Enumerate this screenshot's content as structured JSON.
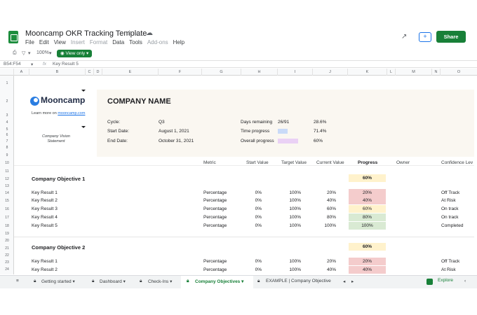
{
  "doc": {
    "title": "Mooncamp OKR Tracking Template",
    "menu": [
      "File",
      "Edit",
      "View",
      "Insert",
      "Format",
      "Data",
      "Tools",
      "Add-ons",
      "Help"
    ],
    "menu_disabled": [
      "Insert",
      "Format",
      "Add-ons"
    ],
    "share_label": "Share"
  },
  "toolbar": {
    "zoom": "100%",
    "view_mode": "View only"
  },
  "formula_bar": {
    "cell_ref": "B54:F54",
    "content": "Key Result 5"
  },
  "columns": [
    "A",
    "B",
    "C",
    "D",
    "E",
    "F",
    "G",
    "H",
    "I",
    "J",
    "K",
    "L",
    "M",
    "N",
    "O"
  ],
  "rows": [
    "1",
    "2",
    "3",
    "4",
    "5",
    "6",
    "7",
    "8",
    "9",
    "10",
    "11",
    "12",
    "13",
    "14",
    "15",
    "16",
    "17",
    "18",
    "19",
    "20",
    "21",
    "22",
    "23",
    "24"
  ],
  "brand": {
    "name": "Mooncamp",
    "learn_text": "Learn more on",
    "learn_link": "mooncamp.com",
    "vision": "Company Vision Statement"
  },
  "header": {
    "company": "COMPANY NAME",
    "cycle_label": "Cycle:",
    "cycle_value": "Q3",
    "start_label": "Start Date:",
    "start_value": "August 1, 2021",
    "end_label": "End Date:",
    "end_value": "October 31, 2021",
    "days_label": "Days remaining",
    "days_value": "26/91",
    "days_pct": "28.6%",
    "time_label": "Time progress",
    "time_pct": "71.4%",
    "time_fraction": 0.714,
    "overall_label": "Overall progress",
    "overall_pct": "60%",
    "overall_fraction": 0.6
  },
  "table_headers": {
    "metric": "Metric",
    "start": "Start Value",
    "target": "Target Value",
    "current": "Current Value",
    "progress": "Progress",
    "owner": "Owner",
    "confidence": "Confidence Lev"
  },
  "objectives": [
    {
      "title": "Company Objective 1",
      "progress": "60%",
      "key_results": [
        {
          "name": "Key Result 1",
          "metric": "Percentage",
          "start": "0%",
          "target": "100%",
          "current": "20%",
          "progress": "20%",
          "confidence": "Off Track"
        },
        {
          "name": "Key Result 2",
          "metric": "Percentage",
          "start": "0%",
          "target": "100%",
          "current": "40%",
          "progress": "40%",
          "confidence": "At Risk"
        },
        {
          "name": "Key Result 3",
          "metric": "Percentage",
          "start": "0%",
          "target": "100%",
          "current": "60%",
          "progress": "60%",
          "confidence": "On track"
        },
        {
          "name": "Key Result 4",
          "metric": "Percentage",
          "start": "0%",
          "target": "100%",
          "current": "80%",
          "progress": "80%",
          "confidence": "On track"
        },
        {
          "name": "Key Result 5",
          "metric": "Percentage",
          "start": "0%",
          "target": "100%",
          "current": "100%",
          "progress": "100%",
          "confidence": "Completed"
        }
      ]
    },
    {
      "title": "Company Objective 2",
      "progress": "60%",
      "key_results": [
        {
          "name": "Key Result 1",
          "metric": "Percentage",
          "start": "0%",
          "target": "100%",
          "current": "20%",
          "progress": "20%",
          "confidence": "Off Track"
        },
        {
          "name": "Key Result 2",
          "metric": "Percentage",
          "start": "0%",
          "target": "100%",
          "current": "40%",
          "progress": "40%",
          "confidence": "At Risk"
        }
      ]
    }
  ],
  "progress_colors": {
    "low": "#f4cccc",
    "mid": "#fff2cc",
    "high": "#d9ead3",
    "time_bar": "#c9daf8",
    "overall_bar": "#ead1f5"
  },
  "tabs": [
    {
      "label": "Getting started",
      "active": false
    },
    {
      "label": "Dashboard",
      "active": false
    },
    {
      "label": "Check-Ins",
      "active": false
    },
    {
      "label": "Company Objectives",
      "active": true
    },
    {
      "label": "EXAMPLE | Company Objective",
      "active": false
    }
  ],
  "explore_label": "Explore"
}
